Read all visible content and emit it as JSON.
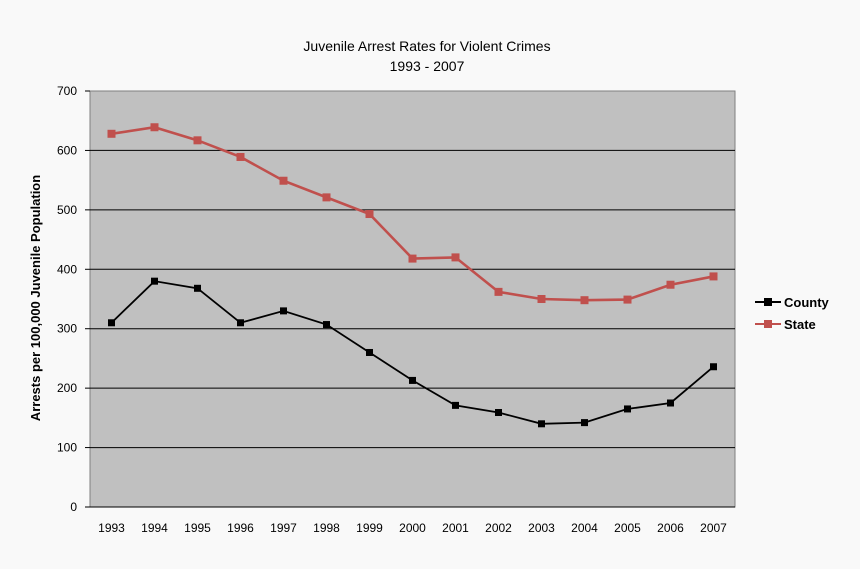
{
  "chart_data": {
    "type": "line",
    "title": "Juvenile Arrest Rates for Violent Crimes",
    "subtitle": "1993 - 2007",
    "xlabel": "",
    "ylabel": "Arrests per 100,000 Juvenile Population",
    "x": [
      "1993",
      "1994",
      "1995",
      "1996",
      "1997",
      "1998",
      "1999",
      "2000",
      "2001",
      "2002",
      "2003",
      "2004",
      "2005",
      "2006",
      "2007"
    ],
    "ylim": [
      0,
      700
    ],
    "yticks": [
      0,
      100,
      200,
      300,
      400,
      500,
      600,
      700
    ],
    "grid": true,
    "legend_position": "right",
    "plot_background": "#c0c0c0",
    "series": [
      {
        "name": "County",
        "color": "#000000",
        "values": [
          310,
          380,
          368,
          310,
          330,
          307,
          260,
          213,
          171,
          159,
          140,
          142,
          165,
          175,
          236
        ]
      },
      {
        "name": "State",
        "color": "#c0504d",
        "values": [
          628,
          639,
          617,
          589,
          549,
          521,
          493,
          418,
          420,
          362,
          350,
          348,
          349,
          374,
          388
        ]
      }
    ]
  }
}
